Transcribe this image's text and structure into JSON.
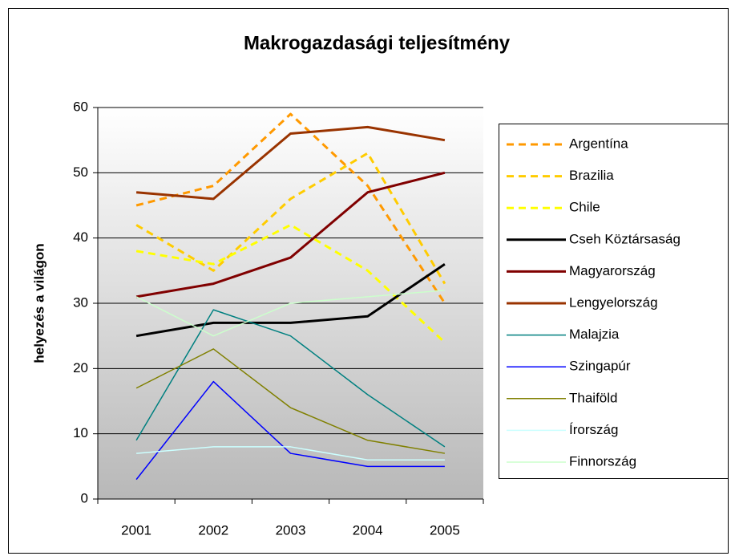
{
  "chart_data": {
    "type": "line",
    "title": "Makrogazdasági teljesítmény",
    "y_label": "helyezés a világon",
    "categories": [
      "2001",
      "2002",
      "2003",
      "2004",
      "2005"
    ],
    "ylim": [
      0,
      60
    ],
    "yticks": [
      0,
      10,
      20,
      30,
      40,
      50,
      60
    ],
    "grid": true,
    "legend": "right",
    "series": [
      {
        "name": "Argentína",
        "color": "#ff9900",
        "linestyle": "dashed",
        "linewidth": 3,
        "values": [
          45,
          48,
          59,
          48,
          30
        ]
      },
      {
        "name": "Brazilia",
        "color": "#ffcc00",
        "linestyle": "dashed",
        "linewidth": 3,
        "values": [
          42,
          35,
          46,
          53,
          33
        ]
      },
      {
        "name": "Chile",
        "color": "#ffff00",
        "linestyle": "dashed",
        "linewidth": 3,
        "values": [
          38,
          36,
          42,
          35,
          24
        ]
      },
      {
        "name": "Cseh Köztársaság",
        "color": "#000000",
        "linestyle": "solid",
        "linewidth": 3,
        "values": [
          25,
          27,
          27,
          28,
          36
        ]
      },
      {
        "name": "Magyarország",
        "color": "#800000",
        "linestyle": "solid",
        "linewidth": 3,
        "values": [
          31,
          33,
          37,
          47,
          50
        ]
      },
      {
        "name": "Lengyelország",
        "color": "#993300",
        "linestyle": "solid",
        "linewidth": 3,
        "values": [
          47,
          46,
          56,
          57,
          55
        ]
      },
      {
        "name": "Malajzia",
        "color": "#008080",
        "linestyle": "solid",
        "linewidth": 1.5,
        "values": [
          9,
          29,
          25,
          16,
          8
        ]
      },
      {
        "name": "Szingapúr",
        "color": "#0000ff",
        "linestyle": "solid",
        "linewidth": 1.5,
        "values": [
          3,
          18,
          7,
          5,
          5
        ]
      },
      {
        "name": "Thaiföld",
        "color": "#808000",
        "linestyle": "solid",
        "linewidth": 1.5,
        "values": [
          17,
          23,
          14,
          9,
          7
        ]
      },
      {
        "name": "Írország",
        "color": "#ccffff",
        "linestyle": "solid",
        "linewidth": 1.5,
        "values": [
          7,
          8,
          8,
          6,
          6
        ]
      },
      {
        "name": "Finnország",
        "color": "#ccffcc",
        "linestyle": "solid",
        "linewidth": 1.5,
        "values": [
          31,
          25,
          30,
          31,
          32
        ]
      }
    ]
  }
}
